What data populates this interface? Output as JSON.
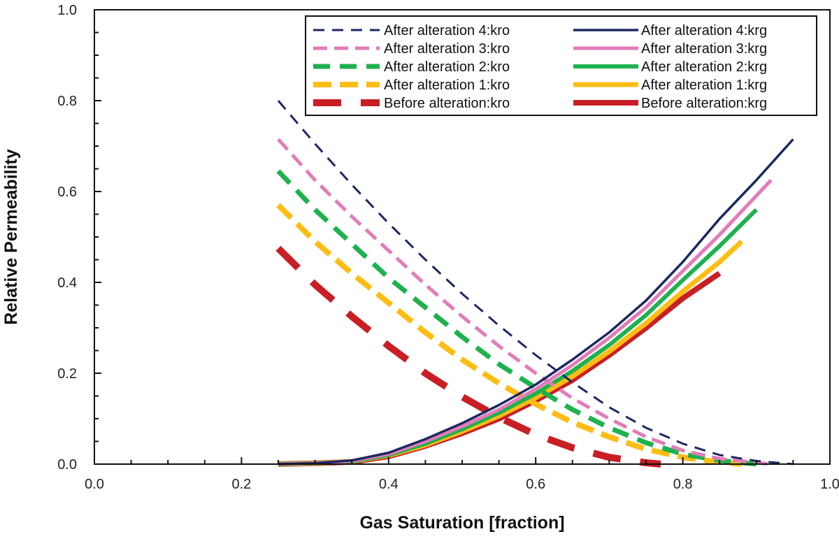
{
  "chart_data": {
    "type": "line",
    "xlabel": "Gas Saturation [fraction]",
    "ylabel": "Relative Permeability",
    "xlim": [
      0.0,
      1.0
    ],
    "ylim": [
      0.0,
      1.0
    ],
    "xticks": [
      "0.0",
      "0.2",
      "0.4",
      "0.6",
      "0.8",
      "1.0"
    ],
    "yticks": [
      "0.0",
      "0.2",
      "0.4",
      "0.6",
      "0.8",
      "1.0"
    ],
    "grid": false,
    "legend_position": "top-right",
    "series": [
      {
        "name": "After alteration 4:kro",
        "kind": "kro",
        "color": "#1c2862",
        "x": [
          0.25,
          0.3,
          0.35,
          0.4,
          0.45,
          0.5,
          0.55,
          0.6,
          0.65,
          0.7,
          0.75,
          0.8,
          0.85,
          0.9,
          0.95
        ],
        "y": [
          0.8,
          0.705,
          0.615,
          0.53,
          0.45,
          0.375,
          0.305,
          0.24,
          0.18,
          0.125,
          0.08,
          0.045,
          0.02,
          0.007,
          0.0
        ]
      },
      {
        "name": "After alteration 4:krg",
        "kind": "krg",
        "color": "#1c2862",
        "x": [
          0.25,
          0.3,
          0.35,
          0.4,
          0.45,
          0.5,
          0.55,
          0.6,
          0.65,
          0.7,
          0.75,
          0.8,
          0.85,
          0.9,
          0.95
        ],
        "y": [
          0.0,
          0.002,
          0.008,
          0.025,
          0.055,
          0.09,
          0.13,
          0.175,
          0.23,
          0.29,
          0.36,
          0.445,
          0.54,
          0.625,
          0.715
        ]
      },
      {
        "name": "After alteration 3:kro",
        "kind": "kro",
        "color": "#e27cb8",
        "x": [
          0.25,
          0.3,
          0.35,
          0.4,
          0.45,
          0.5,
          0.55,
          0.6,
          0.65,
          0.7,
          0.75,
          0.8,
          0.85,
          0.92
        ],
        "y": [
          0.715,
          0.625,
          0.545,
          0.47,
          0.395,
          0.325,
          0.26,
          0.2,
          0.145,
          0.1,
          0.06,
          0.03,
          0.012,
          0.0
        ]
      },
      {
        "name": "After alteration 3:krg",
        "kind": "krg",
        "color": "#e27cb8",
        "x": [
          0.25,
          0.3,
          0.35,
          0.4,
          0.45,
          0.5,
          0.55,
          0.6,
          0.65,
          0.7,
          0.75,
          0.8,
          0.85,
          0.92
        ],
        "y": [
          0.0,
          0.002,
          0.007,
          0.022,
          0.05,
          0.083,
          0.12,
          0.165,
          0.218,
          0.278,
          0.345,
          0.425,
          0.505,
          0.625
        ]
      },
      {
        "name": "After alteration 2:kro",
        "kind": "kro",
        "color": "#1eb14e",
        "x": [
          0.25,
          0.3,
          0.35,
          0.4,
          0.45,
          0.5,
          0.55,
          0.6,
          0.65,
          0.7,
          0.75,
          0.8,
          0.85,
          0.9
        ],
        "y": [
          0.645,
          0.56,
          0.485,
          0.41,
          0.345,
          0.28,
          0.22,
          0.168,
          0.12,
          0.08,
          0.047,
          0.022,
          0.008,
          0.0
        ]
      },
      {
        "name": "After alteration 2:krg",
        "kind": "krg",
        "color": "#1eb14e",
        "x": [
          0.25,
          0.3,
          0.35,
          0.4,
          0.45,
          0.5,
          0.55,
          0.6,
          0.65,
          0.7,
          0.75,
          0.8,
          0.85,
          0.9
        ],
        "y": [
          0.0,
          0.002,
          0.006,
          0.02,
          0.045,
          0.077,
          0.113,
          0.155,
          0.205,
          0.262,
          0.328,
          0.405,
          0.48,
          0.56
        ]
      },
      {
        "name": "After alteration 1:kro",
        "kind": "kro",
        "color": "#fdbd14",
        "x": [
          0.25,
          0.3,
          0.35,
          0.4,
          0.45,
          0.5,
          0.55,
          0.6,
          0.65,
          0.7,
          0.75,
          0.8,
          0.85,
          0.88
        ],
        "y": [
          0.57,
          0.49,
          0.42,
          0.355,
          0.29,
          0.23,
          0.178,
          0.132,
          0.092,
          0.06,
          0.033,
          0.015,
          0.004,
          0.0
        ]
      },
      {
        "name": "After alteration 1:krg",
        "kind": "krg",
        "color": "#fdbd14",
        "x": [
          0.25,
          0.3,
          0.35,
          0.4,
          0.45,
          0.5,
          0.55,
          0.6,
          0.65,
          0.7,
          0.75,
          0.8,
          0.85,
          0.88
        ],
        "y": [
          0.0,
          0.002,
          0.006,
          0.019,
          0.042,
          0.072,
          0.106,
          0.146,
          0.193,
          0.248,
          0.31,
          0.38,
          0.445,
          0.49
        ]
      },
      {
        "name": "Before alteration:kro",
        "kind": "kro",
        "color": "#c81e24",
        "x": [
          0.25,
          0.3,
          0.35,
          0.4,
          0.45,
          0.5,
          0.55,
          0.6,
          0.65,
          0.7,
          0.75,
          0.77
        ],
        "y": [
          0.475,
          0.395,
          0.325,
          0.26,
          0.2,
          0.148,
          0.103,
          0.065,
          0.036,
          0.015,
          0.003,
          0.0
        ]
      },
      {
        "name": "Before alteration:krg",
        "kind": "krg",
        "color": "#c81e24",
        "x": [
          0.25,
          0.3,
          0.35,
          0.4,
          0.45,
          0.5,
          0.55,
          0.6,
          0.65,
          0.7,
          0.75,
          0.8,
          0.85
        ],
        "y": [
          0.0,
          0.002,
          0.005,
          0.017,
          0.04,
          0.068,
          0.1,
          0.14,
          0.185,
          0.24,
          0.3,
          0.365,
          0.42
        ]
      }
    ],
    "legend_order": [
      [
        "After alteration 4:kro",
        "After alteration 4:krg"
      ],
      [
        "After alteration 3:kro",
        "After alteration 3:krg"
      ],
      [
        "After alteration 2:kro",
        "After alteration 2:krg"
      ],
      [
        "After alteration 1:kro",
        "After alteration 1:krg"
      ],
      [
        "Before alteration:kro",
        "Before alteration:krg"
      ]
    ]
  }
}
